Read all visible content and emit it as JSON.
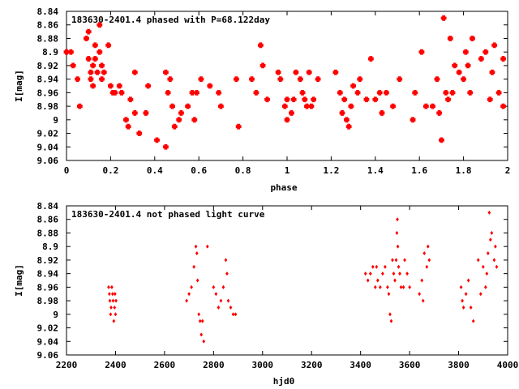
{
  "chart_data": [
    {
      "type": "scatter",
      "title": "183630-2401.4 phased with P=68.122day",
      "xlabel": "phase",
      "ylabel": "I[mag]",
      "xlim": [
        0,
        2
      ],
      "ylim": [
        9.06,
        8.84
      ],
      "y_inverted": true,
      "grid": false,
      "marker": "filled-cross",
      "color": "#ff0000",
      "x_ticks": [
        "0",
        "0.2",
        "0.4",
        "0.6",
        "0.8",
        "1",
        "1.2",
        "1.4",
        "1.6",
        "1.8",
        "2"
      ],
      "y_ticks": [
        "8.84",
        "8.86",
        "8.88",
        "8.9",
        "8.92",
        "8.94",
        "8.96",
        "8.98",
        "9",
        "9.02",
        "9.04",
        "9.06"
      ],
      "series": [
        {
          "points": [
            [
              0.0,
              8.9
            ],
            [
              0.02,
              8.9
            ],
            [
              0.03,
              8.92
            ],
            [
              0.05,
              8.94
            ],
            [
              0.06,
              8.98
            ],
            [
              0.09,
              8.88
            ],
            [
              0.1,
              8.87
            ],
            [
              0.1,
              8.91
            ],
            [
              0.11,
              8.93
            ],
            [
              0.11,
              8.94
            ],
            [
              0.12,
              8.92
            ],
            [
              0.12,
              8.95
            ],
            [
              0.13,
              8.89
            ],
            [
              0.13,
              8.91
            ],
            [
              0.14,
              8.93
            ],
            [
              0.15,
              8.86
            ],
            [
              0.15,
              8.9
            ],
            [
              0.16,
              8.92
            ],
            [
              0.16,
              8.94
            ],
            [
              0.17,
              8.93
            ],
            [
              0.19,
              8.89
            ],
            [
              0.2,
              8.95
            ],
            [
              0.21,
              8.96
            ],
            [
              0.22,
              8.96
            ],
            [
              0.24,
              8.95
            ],
            [
              0.25,
              8.96
            ],
            [
              0.27,
              9.0
            ],
            [
              0.28,
              9.01
            ],
            [
              0.29,
              8.97
            ],
            [
              0.31,
              8.99
            ],
            [
              0.31,
              8.93
            ],
            [
              0.33,
              9.02
            ],
            [
              0.36,
              8.99
            ],
            [
              0.37,
              8.95
            ],
            [
              0.41,
              9.03
            ],
            [
              0.45,
              9.04
            ],
            [
              0.45,
              8.93
            ],
            [
              0.46,
              8.96
            ],
            [
              0.47,
              8.94
            ],
            [
              0.48,
              8.98
            ],
            [
              0.49,
              9.01
            ],
            [
              0.51,
              9.0
            ],
            [
              0.52,
              8.99
            ],
            [
              0.55,
              8.98
            ],
            [
              0.57,
              8.96
            ],
            [
              0.58,
              9.0
            ],
            [
              0.59,
              8.96
            ],
            [
              0.61,
              8.94
            ],
            [
              0.65,
              8.95
            ],
            [
              0.69,
              8.96
            ],
            [
              0.7,
              8.98
            ],
            [
              0.77,
              8.94
            ],
            [
              0.78,
              9.01
            ],
            [
              0.84,
              8.94
            ],
            [
              0.86,
              8.96
            ],
            [
              0.88,
              8.89
            ],
            [
              0.89,
              8.92
            ],
            [
              0.91,
              8.97
            ],
            [
              0.96,
              8.93
            ],
            [
              0.97,
              8.94
            ],
            [
              0.99,
              8.98
            ],
            [
              1.0,
              9.0
            ],
            [
              1.0,
              8.97
            ],
            [
              1.02,
              8.99
            ],
            [
              1.03,
              8.97
            ],
            [
              1.04,
              8.93
            ],
            [
              1.06,
              8.94
            ],
            [
              1.07,
              8.96
            ],
            [
              1.08,
              8.97
            ],
            [
              1.09,
              8.98
            ],
            [
              1.1,
              8.93
            ],
            [
              1.11,
              8.98
            ],
            [
              1.12,
              8.97
            ],
            [
              1.14,
              8.94
            ],
            [
              1.22,
              8.93
            ],
            [
              1.24,
              8.96
            ],
            [
              1.25,
              8.99
            ],
            [
              1.26,
              8.97
            ],
            [
              1.27,
              9.0
            ],
            [
              1.28,
              9.01
            ],
            [
              1.29,
              8.98
            ],
            [
              1.3,
              8.95
            ],
            [
              1.32,
              8.96
            ],
            [
              1.33,
              8.94
            ],
            [
              1.36,
              8.97
            ],
            [
              1.38,
              8.91
            ],
            [
              1.4,
              8.97
            ],
            [
              1.42,
              8.96
            ],
            [
              1.43,
              8.99
            ],
            [
              1.45,
              8.96
            ],
            [
              1.48,
              8.98
            ],
            [
              1.51,
              8.94
            ],
            [
              1.57,
              9.0
            ],
            [
              1.58,
              8.96
            ],
            [
              1.61,
              8.9
            ],
            [
              1.63,
              8.98
            ],
            [
              1.66,
              8.98
            ],
            [
              1.68,
              8.94
            ],
            [
              1.69,
              8.99
            ],
            [
              1.7,
              9.03
            ],
            [
              1.71,
              8.85
            ],
            [
              1.72,
              8.96
            ],
            [
              1.73,
              8.97
            ],
            [
              1.74,
              8.88
            ],
            [
              1.75,
              8.96
            ],
            [
              1.76,
              8.92
            ],
            [
              1.78,
              8.93
            ],
            [
              1.8,
              8.94
            ],
            [
              1.81,
              8.9
            ],
            [
              1.82,
              8.92
            ],
            [
              1.83,
              8.96
            ],
            [
              1.84,
              8.88
            ],
            [
              1.88,
              8.91
            ],
            [
              1.9,
              8.9
            ],
            [
              1.92,
              8.97
            ],
            [
              1.93,
              8.93
            ],
            [
              1.94,
              8.89
            ],
            [
              1.96,
              8.96
            ],
            [
              1.98,
              8.98
            ],
            [
              1.98,
              8.91
            ]
          ]
        }
      ]
    },
    {
      "type": "scatter",
      "title": "183630-2401.4 not phased light curve",
      "xlabel": "hjd0",
      "ylabel": "I[mag]",
      "xlim": [
        2200,
        4000
      ],
      "ylim": [
        9.06,
        8.84
      ],
      "y_inverted": true,
      "grid": false,
      "marker": "small-diamond",
      "color": "#ff0000",
      "x_ticks": [
        "2200",
        "2400",
        "2600",
        "2800",
        "3000",
        "3200",
        "3400",
        "3600",
        "3800",
        "4000"
      ],
      "y_ticks": [
        "8.84",
        "8.86",
        "8.88",
        "8.9",
        "8.92",
        "8.94",
        "8.96",
        "8.98",
        "9",
        "9.02",
        "9.04",
        "9.06"
      ],
      "series": [
        {
          "points": [
            [
              2372,
              8.96
            ],
            [
              2375,
              8.97
            ],
            [
              2377,
              8.98
            ],
            [
              2380,
              9.0
            ],
            [
              2382,
              8.99
            ],
            [
              2385,
              8.96
            ],
            [
              2388,
              8.97
            ],
            [
              2390,
              8.98
            ],
            [
              2393,
              9.01
            ],
            [
              2396,
              8.99
            ],
            [
              2398,
              8.97
            ],
            [
              2400,
              9.0
            ],
            [
              2402,
              8.98
            ],
            [
              2690,
              8.98
            ],
            [
              2700,
              8.97
            ],
            [
              2710,
              8.96
            ],
            [
              2720,
              8.93
            ],
            [
              2728,
              8.9
            ],
            [
              2732,
              8.91
            ],
            [
              2735,
              8.95
            ],
            [
              2740,
              9.0
            ],
            [
              2745,
              9.01
            ],
            [
              2750,
              9.03
            ],
            [
              2755,
              9.01
            ],
            [
              2760,
              9.04
            ],
            [
              2775,
              8.9
            ],
            [
              2800,
              8.96
            ],
            [
              2810,
              8.97
            ],
            [
              2820,
              8.99
            ],
            [
              2830,
              8.98
            ],
            [
              2840,
              8.96
            ],
            [
              2850,
              8.92
            ],
            [
              2855,
              8.94
            ],
            [
              2860,
              8.98
            ],
            [
              2870,
              8.99
            ],
            [
              2880,
              9.0
            ],
            [
              2890,
              9.0
            ],
            [
              3420,
              8.94
            ],
            [
              3430,
              8.95
            ],
            [
              3440,
              8.94
            ],
            [
              3450,
              8.93
            ],
            [
              3460,
              8.96
            ],
            [
              3465,
              8.93
            ],
            [
              3470,
              8.95
            ],
            [
              3480,
              8.96
            ],
            [
              3490,
              8.94
            ],
            [
              3500,
              8.93
            ],
            [
              3510,
              8.96
            ],
            [
              3515,
              8.97
            ],
            [
              3520,
              9.0
            ],
            [
              3525,
              9.01
            ],
            [
              3530,
              8.92
            ],
            [
              3535,
              8.94
            ],
            [
              3540,
              8.95
            ],
            [
              3545,
              8.92
            ],
            [
              3548,
              8.88
            ],
            [
              3550,
              8.86
            ],
            [
              3552,
              8.9
            ],
            [
              3555,
              8.93
            ],
            [
              3560,
              8.94
            ],
            [
              3565,
              8.96
            ],
            [
              3575,
              8.96
            ],
            [
              3580,
              8.92
            ],
            [
              3590,
              8.94
            ],
            [
              3600,
              8.96
            ],
            [
              3640,
              8.97
            ],
            [
              3650,
              8.95
            ],
            [
              3655,
              8.98
            ],
            [
              3660,
              8.91
            ],
            [
              3670,
              8.93
            ],
            [
              3675,
              8.9
            ],
            [
              3680,
              8.92
            ],
            [
              3810,
              8.96
            ],
            [
              3815,
              8.98
            ],
            [
              3820,
              8.99
            ],
            [
              3830,
              8.97
            ],
            [
              3840,
              8.95
            ],
            [
              3850,
              8.99
            ],
            [
              3860,
              9.01
            ],
            [
              3880,
              8.92
            ],
            [
              3890,
              8.97
            ],
            [
              3900,
              8.93
            ],
            [
              3910,
              8.96
            ],
            [
              3915,
              8.94
            ],
            [
              3920,
              8.91
            ],
            [
              3925,
              8.85
            ],
            [
              3930,
              8.89
            ],
            [
              3935,
              8.88
            ],
            [
              3945,
              8.92
            ],
            [
              3950,
              8.9
            ],
            [
              3955,
              8.93
            ]
          ]
        }
      ]
    }
  ]
}
